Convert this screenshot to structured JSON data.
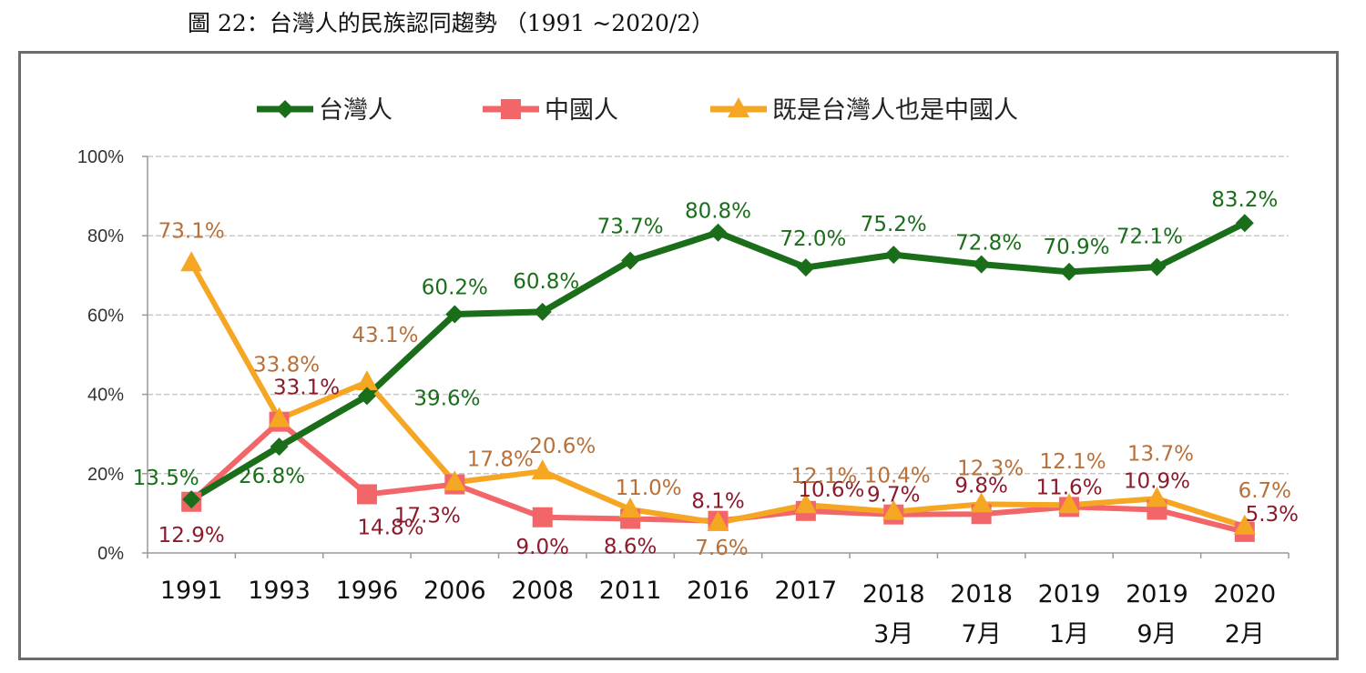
{
  "title": "圖 22：台灣人的民族認同趨勢 （1991 ~2020/2）",
  "chart_data": {
    "type": "line",
    "categories": [
      {
        "line1": "1991",
        "line2": ""
      },
      {
        "line1": "1993",
        "line2": ""
      },
      {
        "line1": "1996",
        "line2": ""
      },
      {
        "line1": "2006",
        "line2": ""
      },
      {
        "line1": "2008",
        "line2": ""
      },
      {
        "line1": "2011",
        "line2": ""
      },
      {
        "line1": "2016",
        "line2": ""
      },
      {
        "line1": "2017",
        "line2": ""
      },
      {
        "line1": "2018",
        "line2": "3月"
      },
      {
        "line1": "2018",
        "line2": "7月"
      },
      {
        "line1": "2019",
        "line2": "1月"
      },
      {
        "line1": "2019",
        "line2": "9月"
      },
      {
        "line1": "2020",
        "line2": "2月"
      }
    ],
    "yticks": [
      "0%",
      "20%",
      "40%",
      "60%",
      "80%",
      "100%"
    ],
    "ylim": [
      0,
      100
    ],
    "grid": "horizontal-dashed",
    "legend_position": "top",
    "series": [
      {
        "name": "台灣人",
        "color": "#1a6e1a",
        "label_color": "#1a6e1a",
        "marker": "diamond",
        "values": [
          13.5,
          26.8,
          39.6,
          60.2,
          60.8,
          73.7,
          80.8,
          72.0,
          75.2,
          72.8,
          70.9,
          72.1,
          83.2
        ],
        "labels": [
          "13.5%",
          "26.8%",
          "39.6%",
          "60.2%",
          "60.8%",
          "73.7%",
          "80.8%",
          "72.0%",
          "75.2%",
          "72.8%",
          "70.9%",
          "72.1%",
          "83.2%"
        ]
      },
      {
        "name": "中國人",
        "color": "#f2666a",
        "label_color": "#8b1a2b",
        "marker": "square",
        "values": [
          12.9,
          33.1,
          14.8,
          17.3,
          9.0,
          8.6,
          8.1,
          10.6,
          9.7,
          9.8,
          11.6,
          10.9,
          5.3
        ],
        "labels": [
          "12.9%",
          "33.1%",
          "14.8%",
          "17.3%",
          "9.0%",
          "8.6%",
          "8.1%",
          "10.6%",
          "9.7%",
          "9.8%",
          "11.6%",
          "10.9%",
          "5.3%"
        ]
      },
      {
        "name": "既是台灣人也是中國人",
        "color": "#f5a623",
        "label_color": "#b8703a",
        "marker": "triangle",
        "values": [
          73.1,
          33.8,
          43.1,
          17.8,
          20.6,
          11.0,
          7.6,
          12.1,
          10.4,
          12.3,
          12.1,
          13.7,
          6.7
        ],
        "labels": [
          "73.1%",
          "33.8%",
          "43.1%",
          "17.8%",
          "20.6%",
          "11.0%",
          "7.6%",
          "12.1%",
          "10.4%",
          "12.3%",
          "12.1%",
          "13.7%",
          "6.7%"
        ]
      }
    ]
  }
}
